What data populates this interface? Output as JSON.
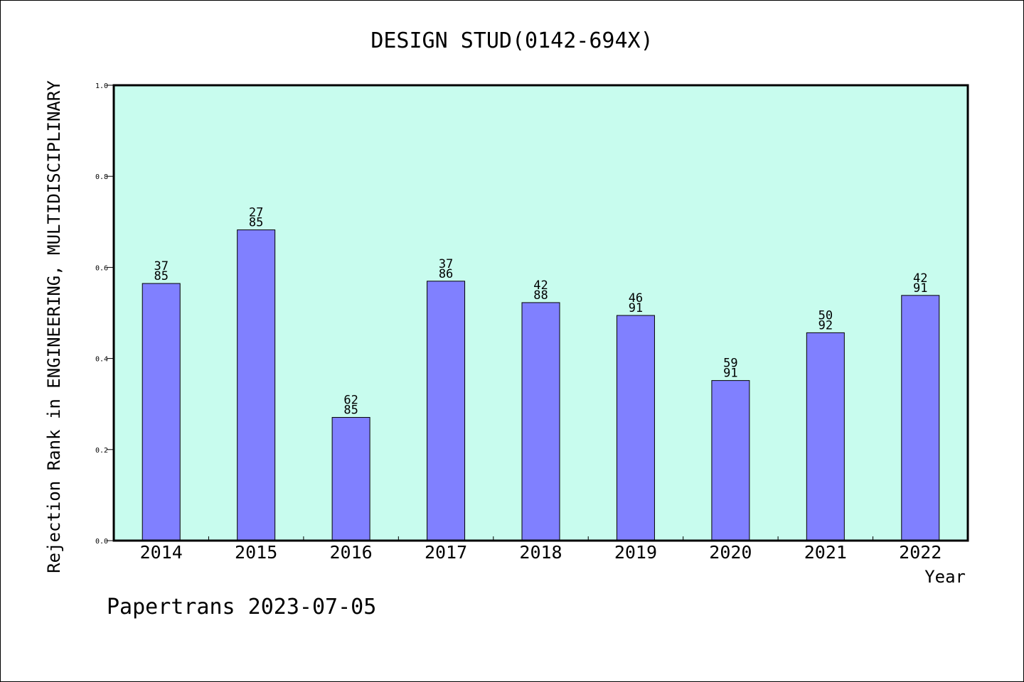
{
  "chart_data": {
    "type": "bar",
    "title": "DESIGN STUD(0142-694X)",
    "xlabel": "Year",
    "ylabel": "Rejection Rank in ENGINEERING, MULTIDISCIPLINARY",
    "categories": [
      "2014",
      "2015",
      "2016",
      "2017",
      "2018",
      "2019",
      "2020",
      "2021",
      "2022"
    ],
    "values": [
      0.5647,
      0.6824,
      0.2706,
      0.5698,
      0.5227,
      0.4945,
      0.3516,
      0.4565,
      0.5385
    ],
    "label_top": [
      "37",
      "27",
      "62",
      "37",
      "42",
      "46",
      "59",
      "50",
      "42"
    ],
    "label_bottom": [
      "85",
      "85",
      "85",
      "86",
      "88",
      "91",
      "91",
      "92",
      "91"
    ],
    "ylim": [
      0,
      1.0
    ],
    "yticks": [
      "0.0",
      "0.2",
      "0.4",
      "0.6",
      "0.8",
      "1.0"
    ],
    "grid": false,
    "colors": {
      "bar": "#8080ff",
      "plot_bg": "#c8fcee"
    }
  },
  "footer": "Papertrans 2023-07-05"
}
